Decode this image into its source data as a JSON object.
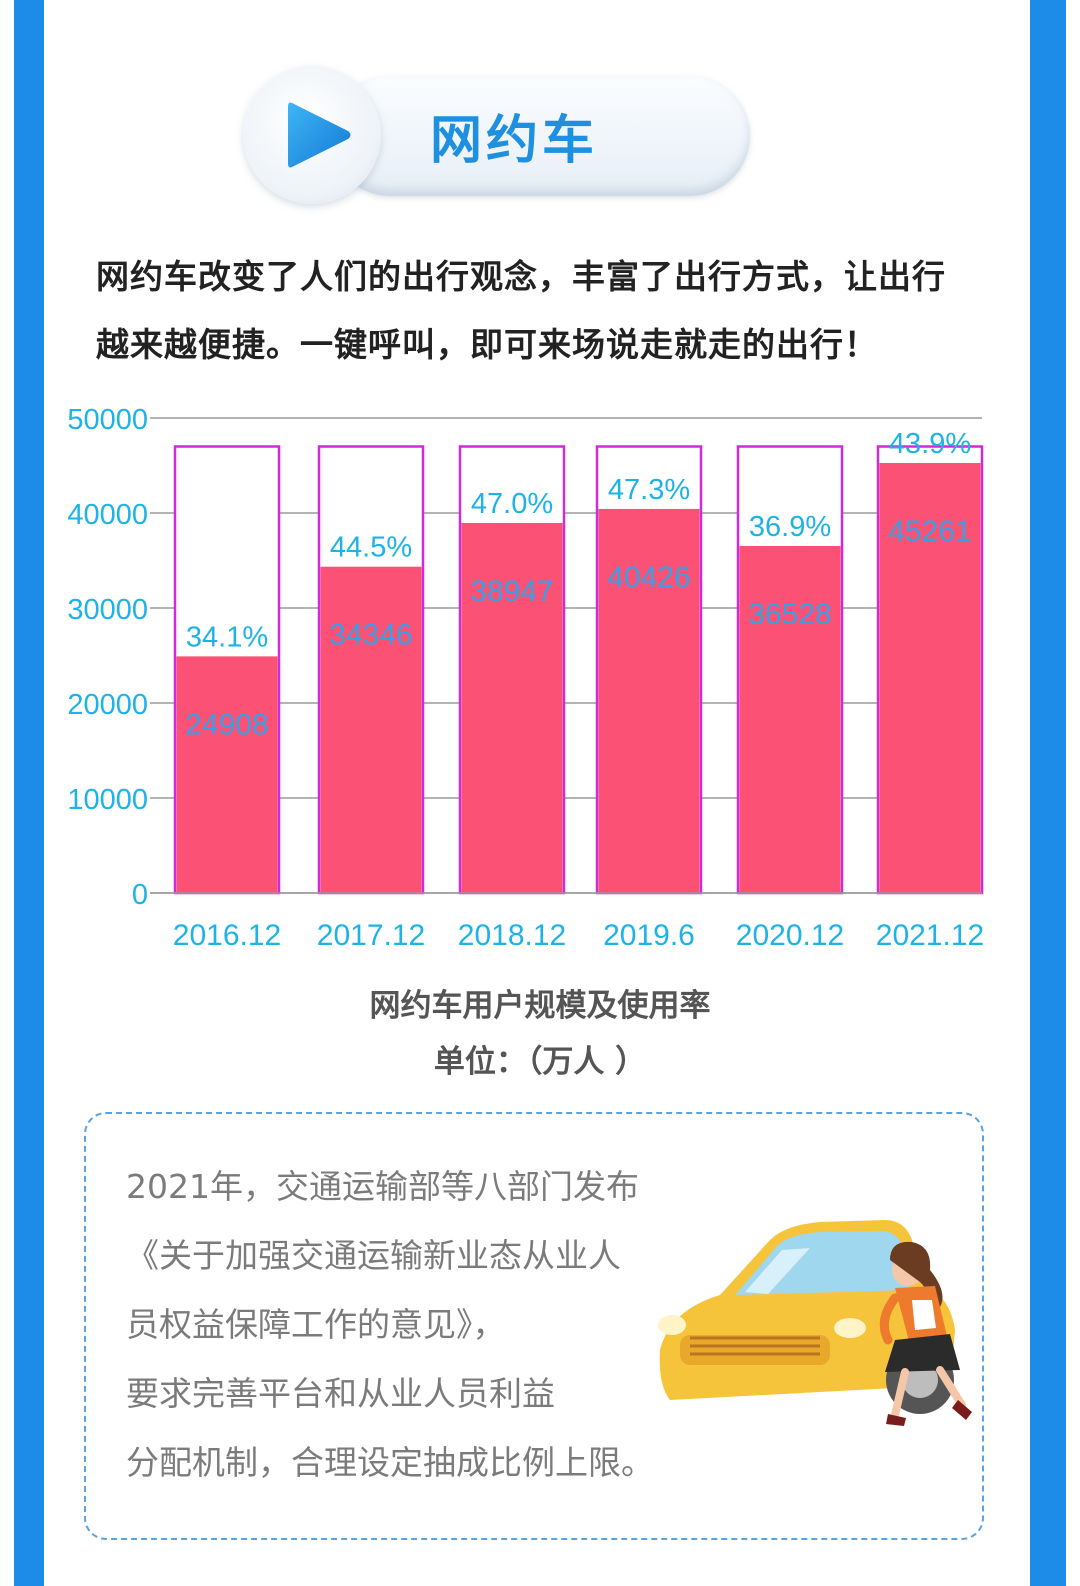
{
  "header": {
    "title": "网约车",
    "icon": "play-icon",
    "accent": "#1f8fe0"
  },
  "intro": "网约车改变了人们的出行观念，丰富了出行方式，让出行越来越便捷。一键呼叫，即可来场说走就走的出行！",
  "chart_data": {
    "type": "bar",
    "title": "网约车用户规模及使用率",
    "unit_label": "单位：（万人 ）",
    "categories": [
      "2016.12",
      "2017.12",
      "2018.12",
      "2019.6",
      "2020.12",
      "2021.12"
    ],
    "series": [
      {
        "values": [
          24908,
          34346,
          38947,
          40426,
          36528,
          45261
        ],
        "color": "#fb5174"
      }
    ],
    "rate_labels": [
      "34.1%",
      "44.5%",
      "47.0%",
      "47.3%",
      "36.9%",
      "43.9%"
    ],
    "ylim": [
      0,
      50000
    ],
    "yticks": [
      0,
      10000,
      20000,
      30000,
      40000,
      50000
    ],
    "grid": true,
    "frame_color": "#d12ad8",
    "label_color": "#1eb3e6"
  },
  "note": {
    "lines": [
      "2021年，交通运输部等八部门发布",
      "《关于加强交通运输新业态从业人",
      "员权益保障工作的意见》，",
      "要求完善平台和从业人员利益",
      "分配机制，合理设定抽成比例上限。"
    ]
  },
  "colors": {
    "rail": "#1d8ce8",
    "note_border": "#5aa2e0"
  }
}
